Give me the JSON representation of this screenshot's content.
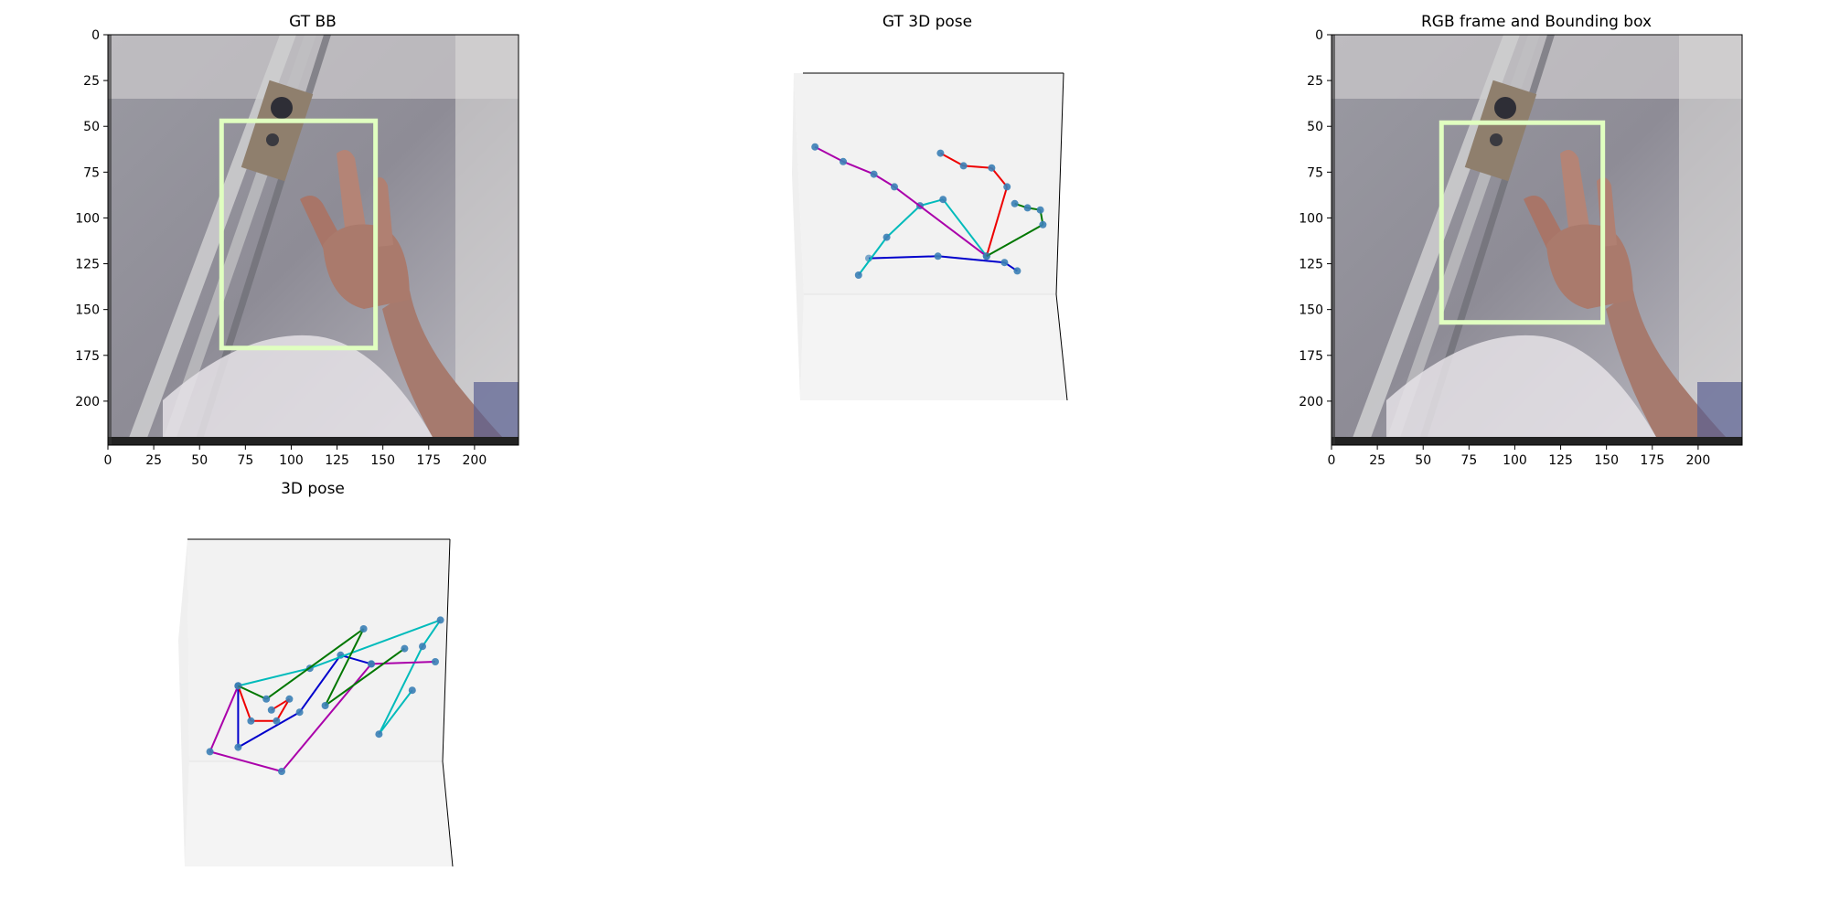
{
  "panels": {
    "gt_bb": {
      "title": "GT BB"
    },
    "gt_pose": {
      "title": "GT 3D pose"
    },
    "rgb_bb": {
      "title": "RGB frame and Bounding box"
    },
    "pred_pose": {
      "title": "3D pose"
    }
  },
  "chart_data": [
    {
      "type": "image",
      "title": "GT BB",
      "xlim": [
        0,
        224
      ],
      "ylim": [
        224,
        0
      ],
      "xticks": [
        0,
        25,
        50,
        75,
        100,
        125,
        150,
        175,
        200
      ],
      "yticks": [
        0,
        25,
        50,
        75,
        100,
        125,
        150,
        175,
        200
      ],
      "bounding_box": {
        "x_min": 62,
        "y_min": 47,
        "x_max": 146,
        "y_max": 171,
        "color": "#e0ffc0"
      }
    },
    {
      "type": "scatter3d",
      "title": "GT 3D pose",
      "axes_visible": false,
      "fingers": [
        {
          "color": "#0000cc",
          "points": [
            [
              25,
              62
            ],
            [
              52,
              61
            ],
            [
              78,
              64
            ],
            [
              83,
              68
            ]
          ]
        },
        {
          "color": "#00bbbb",
          "points": [
            [
              71,
              61
            ],
            [
              54,
              34
            ],
            [
              45,
              37
            ],
            [
              32,
              52
            ],
            [
              21,
              70
            ]
          ]
        },
        {
          "color": "#aa00aa",
          "points": [
            [
              71,
              61
            ],
            [
              35,
              28
            ],
            [
              27,
              22
            ],
            [
              15,
              16
            ],
            [
              4,
              9
            ]
          ]
        },
        {
          "color": "#ee0000",
          "points": [
            [
              71,
              61
            ],
            [
              79,
              28
            ],
            [
              73,
              19
            ],
            [
              62,
              18
            ],
            [
              53,
              12
            ]
          ]
        },
        {
          "color": "#007700",
          "points": [
            [
              71,
              61
            ],
            [
              93,
              46
            ],
            [
              92,
              39
            ],
            [
              87,
              38
            ],
            [
              82,
              36
            ]
          ]
        }
      ]
    },
    {
      "type": "image",
      "title": "RGB frame and Bounding box",
      "xlim": [
        0,
        224
      ],
      "ylim": [
        224,
        0
      ],
      "xticks": [
        0,
        25,
        50,
        75,
        100,
        125,
        150,
        175,
        200
      ],
      "yticks": [
        0,
        25,
        50,
        75,
        100,
        125,
        150,
        175,
        200
      ],
      "bounding_box": {
        "x_min": 60,
        "y_min": 48,
        "x_max": 148,
        "y_max": 157,
        "color": "#e0ffc0"
      }
    },
    {
      "type": "scatter3d",
      "title": "3D pose",
      "axes_visible": false,
      "fingers": [
        {
          "color": "#0000cc",
          "points": [
            [
              18,
              46
            ],
            [
              18,
              74
            ],
            [
              42,
              58
            ],
            [
              58,
              32
            ],
            [
              70,
              36
            ]
          ]
        },
        {
          "color": "#00bbbb",
          "points": [
            [
              18,
              46
            ],
            [
              46,
              38
            ],
            [
              97,
              16
            ],
            [
              90,
              28
            ],
            [
              73,
              68
            ],
            [
              86,
              48
            ]
          ]
        },
        {
          "color": "#aa00aa",
          "points": [
            [
              18,
              46
            ],
            [
              7,
              76
            ],
            [
              35,
              85
            ],
            [
              70,
              36
            ],
            [
              95,
              35
            ]
          ]
        },
        {
          "color": "#ee0000",
          "points": [
            [
              18,
              46
            ],
            [
              23,
              62
            ],
            [
              33,
              62
            ],
            [
              38,
              52
            ],
            [
              31,
              57
            ]
          ]
        },
        {
          "color": "#007700",
          "points": [
            [
              18,
              46
            ],
            [
              29,
              52
            ],
            [
              67,
              20
            ],
            [
              52,
              55
            ],
            [
              83,
              29
            ]
          ]
        }
      ]
    }
  ]
}
